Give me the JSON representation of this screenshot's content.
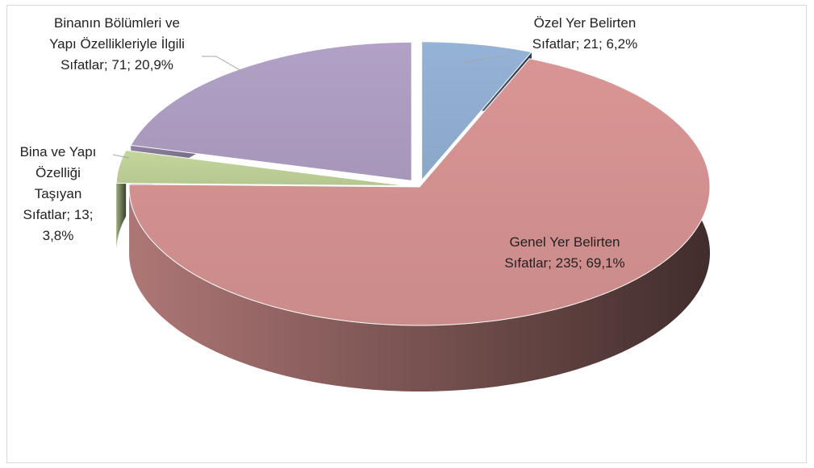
{
  "chart_data": {
    "type": "pie3d",
    "values": [
      21,
      235,
      13,
      71
    ],
    "value_labels": [
      "Özel Yer Belirten Sıfatlar; 21; 6,2%",
      "Genel Yer Belirten Sıfatlar; 235; 69,1%",
      "Bina ve Yapı Özelliği Taşıyan Sıfatlar; 13; 3,8%",
      "Binanın Bölümleri ve Yapı Özellikleriyle İlgili Sıfatlar; 71; 20,9%"
    ],
    "colors": [
      "#95b3d7",
      "#d99594",
      "#c3d69b",
      "#b2a1c7"
    ]
  }
}
